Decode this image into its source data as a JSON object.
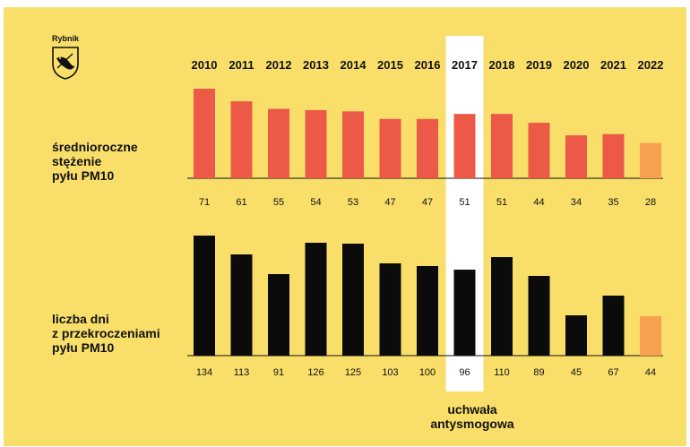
{
  "logo": {
    "text": "Rybnik"
  },
  "labels": {
    "pm10_avg": [
      "średnioroczne",
      "stężenie",
      "pyłu PM10"
    ],
    "exceed_days": [
      "liczba dni",
      "z przekroczeniami",
      "pyłu PM10"
    ]
  },
  "highlight": {
    "year": "2017",
    "caption": [
      "uchwała",
      "antysmogowa"
    ]
  },
  "colors": {
    "background": "#f9df6a",
    "pm10_bar": "#ec5a47",
    "days_bar": "#0b0b0b",
    "last_pm10": "#f5a14d",
    "last_days": "#f5a14d",
    "highlight": "#ffffff"
  },
  "chart_data": {
    "type": "bar",
    "categories": [
      "2010",
      "2011",
      "2012",
      "2013",
      "2014",
      "2015",
      "2016",
      "2017",
      "2018",
      "2019",
      "2020",
      "2021",
      "2022"
    ],
    "series": [
      {
        "name": "średnioroczne stężenie pyłu PM10",
        "values": [
          71,
          61,
          55,
          54,
          53,
          47,
          47,
          51,
          51,
          44,
          34,
          35,
          28
        ]
      },
      {
        "name": "liczba dni z przekroczeniami pyłu PM10",
        "values": [
          134,
          113,
          91,
          126,
          125,
          103,
          100,
          96,
          110,
          89,
          45,
          67,
          44
        ]
      }
    ]
  }
}
